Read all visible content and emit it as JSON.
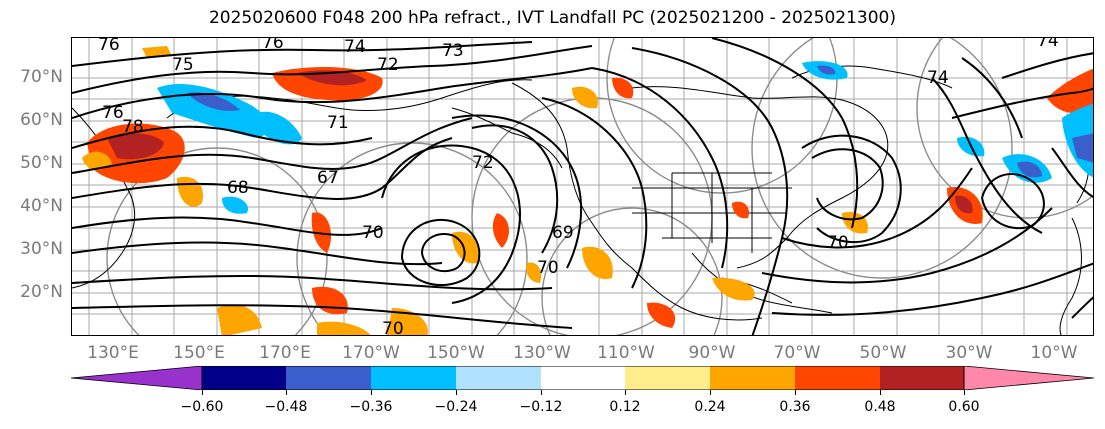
{
  "title": "2025020600 F048 200 hPa refract., IVT Landfall PC (2025021200 - 2025021300)",
  "lat_labels": [
    "70°N",
    "60°N",
    "50°N",
    "40°N",
    "30°N",
    "20°N"
  ],
  "lon_labels": [
    "130°E",
    "150°E",
    "170°E",
    "170°W",
    "150°W",
    "130°W",
    "110°W",
    "90°W",
    "70°W",
    "50°W",
    "30°W",
    "10°W"
  ],
  "contour_labels": [
    "76",
    "76",
    "74",
    "73",
    "72",
    "75",
    "76",
    "78",
    "71",
    "68",
    "67",
    "72",
    "69",
    "70",
    "70",
    "70",
    "70",
    "74",
    "74"
  ],
  "colorbar": {
    "ticks": [
      "−0.60",
      "−0.48",
      "−0.36",
      "−0.24",
      "−0.12",
      "0.12",
      "0.24",
      "0.36",
      "0.48",
      "0.60"
    ],
    "colors": [
      "#9932cc",
      "#00008b",
      "#3a5fcd",
      "#00bfff",
      "#b0e2ff",
      "#ffffff",
      "#ffec8b",
      "#ffa500",
      "#ff4500",
      "#b22222",
      "#ff88aa"
    ]
  }
}
